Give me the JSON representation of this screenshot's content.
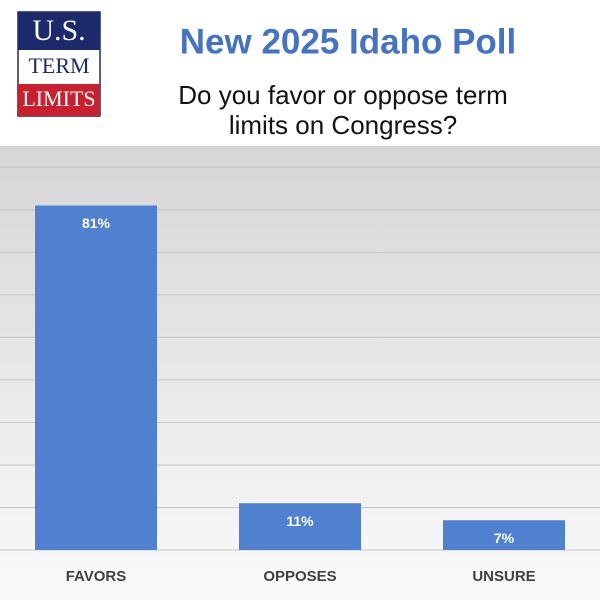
{
  "logo": {
    "line1": "U.S.",
    "line2": "TERM",
    "line3": "LIMITS"
  },
  "chart_data": {
    "type": "bar",
    "title": "New 2025 Idaho Poll",
    "subtitle": "Do you favor or oppose term limits on Congress?",
    "categories": [
      "FAVORS",
      "OPPOSES",
      "UNSURE"
    ],
    "values": [
      81,
      11,
      7
    ],
    "value_labels": [
      "81%",
      "11%",
      "7%"
    ],
    "color": "#5081d0",
    "ylim": [
      0,
      95
    ],
    "yticks": [
      0,
      10,
      20,
      30,
      40,
      50,
      60,
      70,
      80,
      90
    ],
    "grid": true
  }
}
